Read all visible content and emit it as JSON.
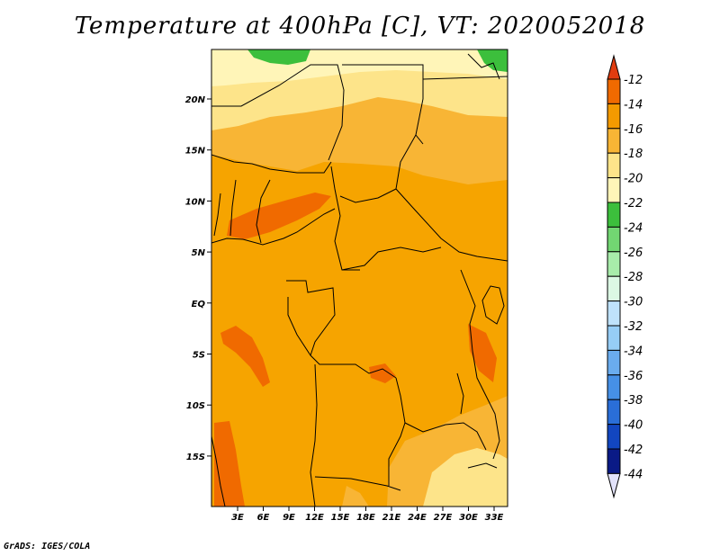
{
  "title": "Temperature at 400hPa [C], VT: 2020052018",
  "credit": "GrADS: IGES/COLA",
  "map": {
    "lat_labels": [
      "20N",
      "15N",
      "10N",
      "5N",
      "EQ",
      "5S",
      "10S",
      "15S"
    ],
    "lon_labels": [
      "3E",
      "6E",
      "9E",
      "12E",
      "15E",
      "18E",
      "21E",
      "24E",
      "27E",
      "30E",
      "33E"
    ]
  },
  "colorbar": {
    "levels": [
      "-12",
      "-14",
      "-16",
      "-18",
      "-20",
      "-22",
      "-24",
      "-26",
      "-28",
      "-30",
      "-32",
      "-34",
      "-36",
      "-38",
      "-40",
      "-42",
      "-44"
    ],
    "colors": [
      "#e03c10",
      "#f06a00",
      "#f49a00",
      "#f8b535",
      "#fde48a",
      "#fff5b8",
      "#3cbf3c",
      "#72d672",
      "#a8ecaa",
      "#dcf8e4",
      "#bfe2fb",
      "#96cdf6",
      "#6aacee",
      "#4690e6",
      "#2a6ed8",
      "#1246c0",
      "#0a1a86",
      "#e2e2fa"
    ]
  }
}
